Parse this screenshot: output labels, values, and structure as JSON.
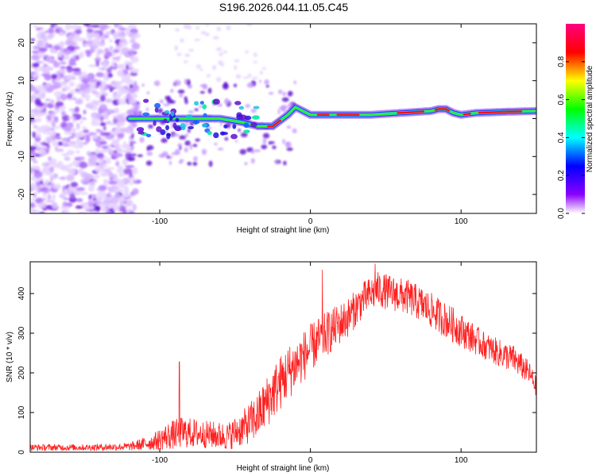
{
  "title": "S196.2026.044.11.05.C45",
  "chart_data": [
    {
      "type": "heatmap",
      "xlabel": "Height of straight line (km)",
      "ylabel": "Frequency (Hz)",
      "xlim": [
        -186,
        150
      ],
      "ylim": [
        -25,
        25
      ],
      "x_ticks": [
        -100,
        0,
        100
      ],
      "y_ticks": [
        -20,
        -10,
        0,
        10,
        20
      ],
      "colorbar": {
        "label": "Normalized spectral amplitude",
        "range": [
          0,
          1
        ],
        "ticks": [
          "0.0",
          "0.2",
          "0.4",
          "0.6",
          "0.8"
        ],
        "tick_values": [
          0.0,
          0.2,
          0.4,
          0.6,
          0.8
        ],
        "colors": [
          "#ffffff",
          "#8a00ff",
          "#0000ff",
          "#00ffff",
          "#00ff00",
          "#ffff00",
          "#ff0000",
          "#ff0080"
        ]
      },
      "signal_track": {
        "x": [
          -120,
          -100,
          -80,
          -60,
          -45,
          -35,
          -25,
          -15,
          -10,
          0,
          20,
          40,
          60,
          80,
          85,
          90,
          95,
          100,
          110,
          130,
          150
        ],
        "freq_hz": [
          0,
          0,
          0,
          0,
          -1,
          -2,
          -2,
          1,
          3,
          1,
          1,
          1,
          1.5,
          2,
          2.5,
          2.5,
          1.5,
          1,
          1.5,
          1.8,
          2
        ]
      },
      "noise_region_x": [
        -186,
        -115
      ]
    },
    {
      "type": "line",
      "xlabel": "Height of straight line (km)",
      "ylabel": "SNR (10 * v/v)",
      "xlim": [
        -186,
        150
      ],
      "ylim": [
        0,
        480
      ],
      "x_ticks": [
        -100,
        0,
        100
      ],
      "y_ticks": [
        0,
        100,
        200,
        300,
        400
      ],
      "color": "#ff2020",
      "envelope": {
        "x": [
          -186,
          -150,
          -120,
          -105,
          -95,
          -85,
          -70,
          -55,
          -45,
          -35,
          -25,
          -15,
          -5,
          5,
          15,
          25,
          35,
          45,
          55,
          65,
          75,
          85,
          95,
          105,
          115,
          125,
          135,
          145,
          150
        ],
        "mean": [
          12,
          12,
          14,
          25,
          40,
          50,
          45,
          40,
          60,
          90,
          150,
          200,
          240,
          280,
          310,
          340,
          385,
          410,
          400,
          390,
          370,
          345,
          320,
          295,
          270,
          250,
          235,
          200,
          165
        ],
        "amplitude": [
          8,
          8,
          10,
          20,
          35,
          40,
          35,
          35,
          45,
          60,
          70,
          70,
          65,
          60,
          55,
          50,
          45,
          45,
          45,
          45,
          45,
          45,
          45,
          40,
          35,
          35,
          35,
          30,
          25
        ]
      },
      "spikes": [
        {
          "x": -87,
          "y": 228
        },
        {
          "x": 8,
          "y": 460
        },
        {
          "x": 43,
          "y": 475
        }
      ]
    }
  ]
}
